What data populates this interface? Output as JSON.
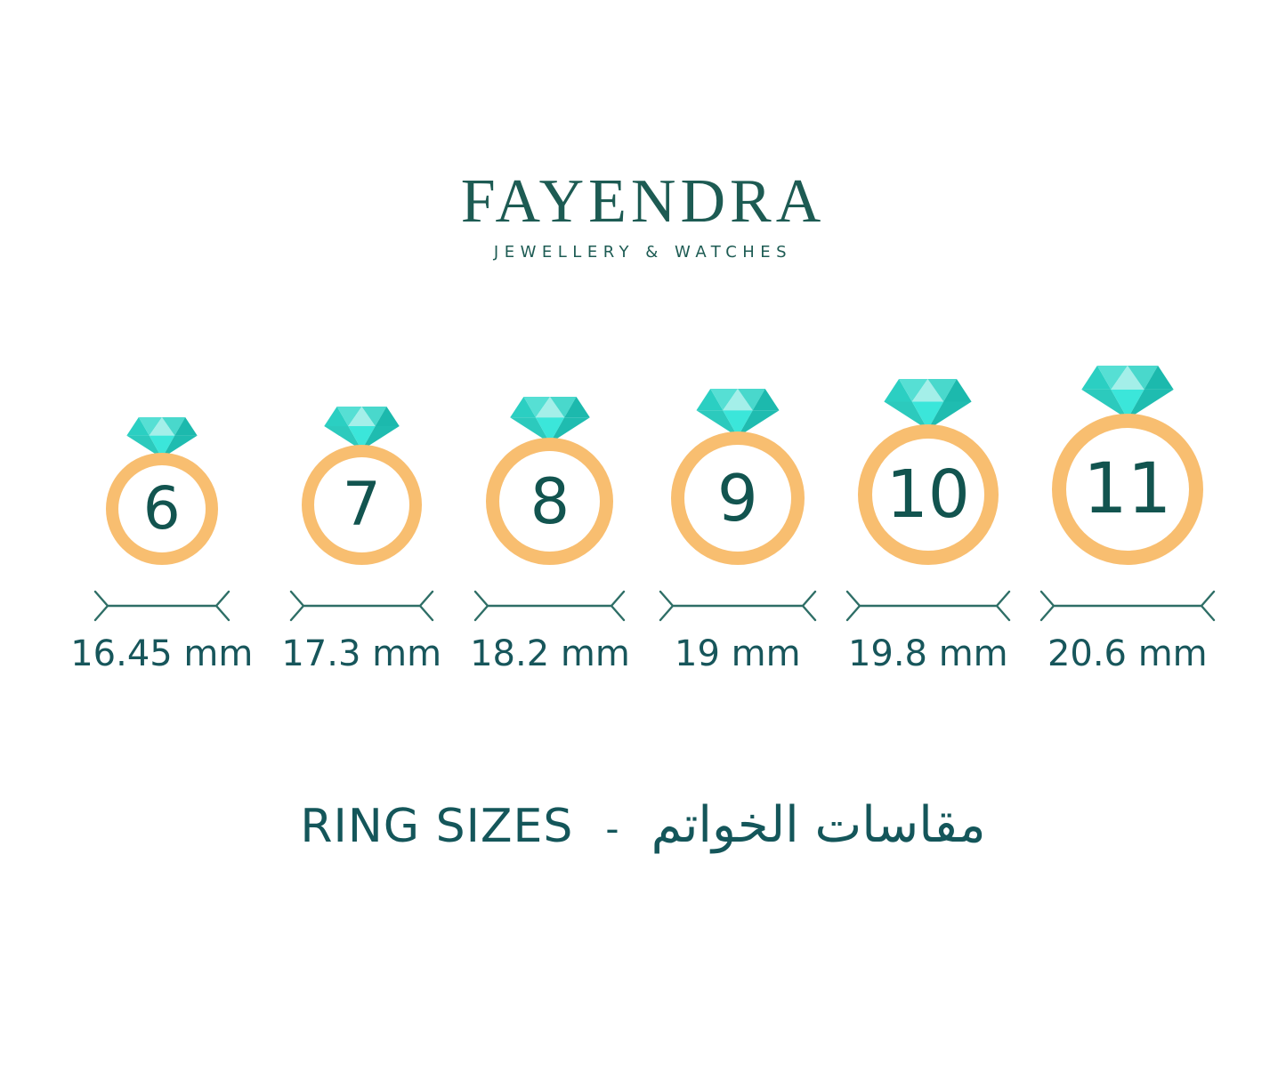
{
  "brand": {
    "name": "FAYENDRA",
    "tagline": "JEWELLERY & WATCHES"
  },
  "title": {
    "en": "RING SIZES",
    "separator": "-",
    "ar": "مقاسات الخواتم"
  },
  "rings": [
    {
      "size": "6",
      "diameter": "16.45 mm"
    },
    {
      "size": "7",
      "diameter": "17.3 mm"
    },
    {
      "size": "8",
      "diameter": "18.2 mm"
    },
    {
      "size": "9",
      "diameter": "19 mm"
    },
    {
      "size": "10",
      "diameter": "19.8 mm"
    },
    {
      "size": "11",
      "diameter": "20.6 mm"
    }
  ],
  "colors": {
    "brand_text": "#1D5B53",
    "band": "#F8BE70",
    "size_number": "#12544F",
    "measure_line": "#2E6E66",
    "label_text": "#17565B",
    "title_text": "#14565A",
    "diamond": {
      "crown_left": "#2BCFC2",
      "crown_mid_left": "#56DFD4",
      "crown_center": "#A4EFE9",
      "crown_mid_right": "#49D8CC",
      "crown_right": "#1CB9AD",
      "pavilion_left": "#2CCABD",
      "pavilion_center": "#3BE6DA",
      "pavilion_right": "#1FBCB0"
    }
  }
}
